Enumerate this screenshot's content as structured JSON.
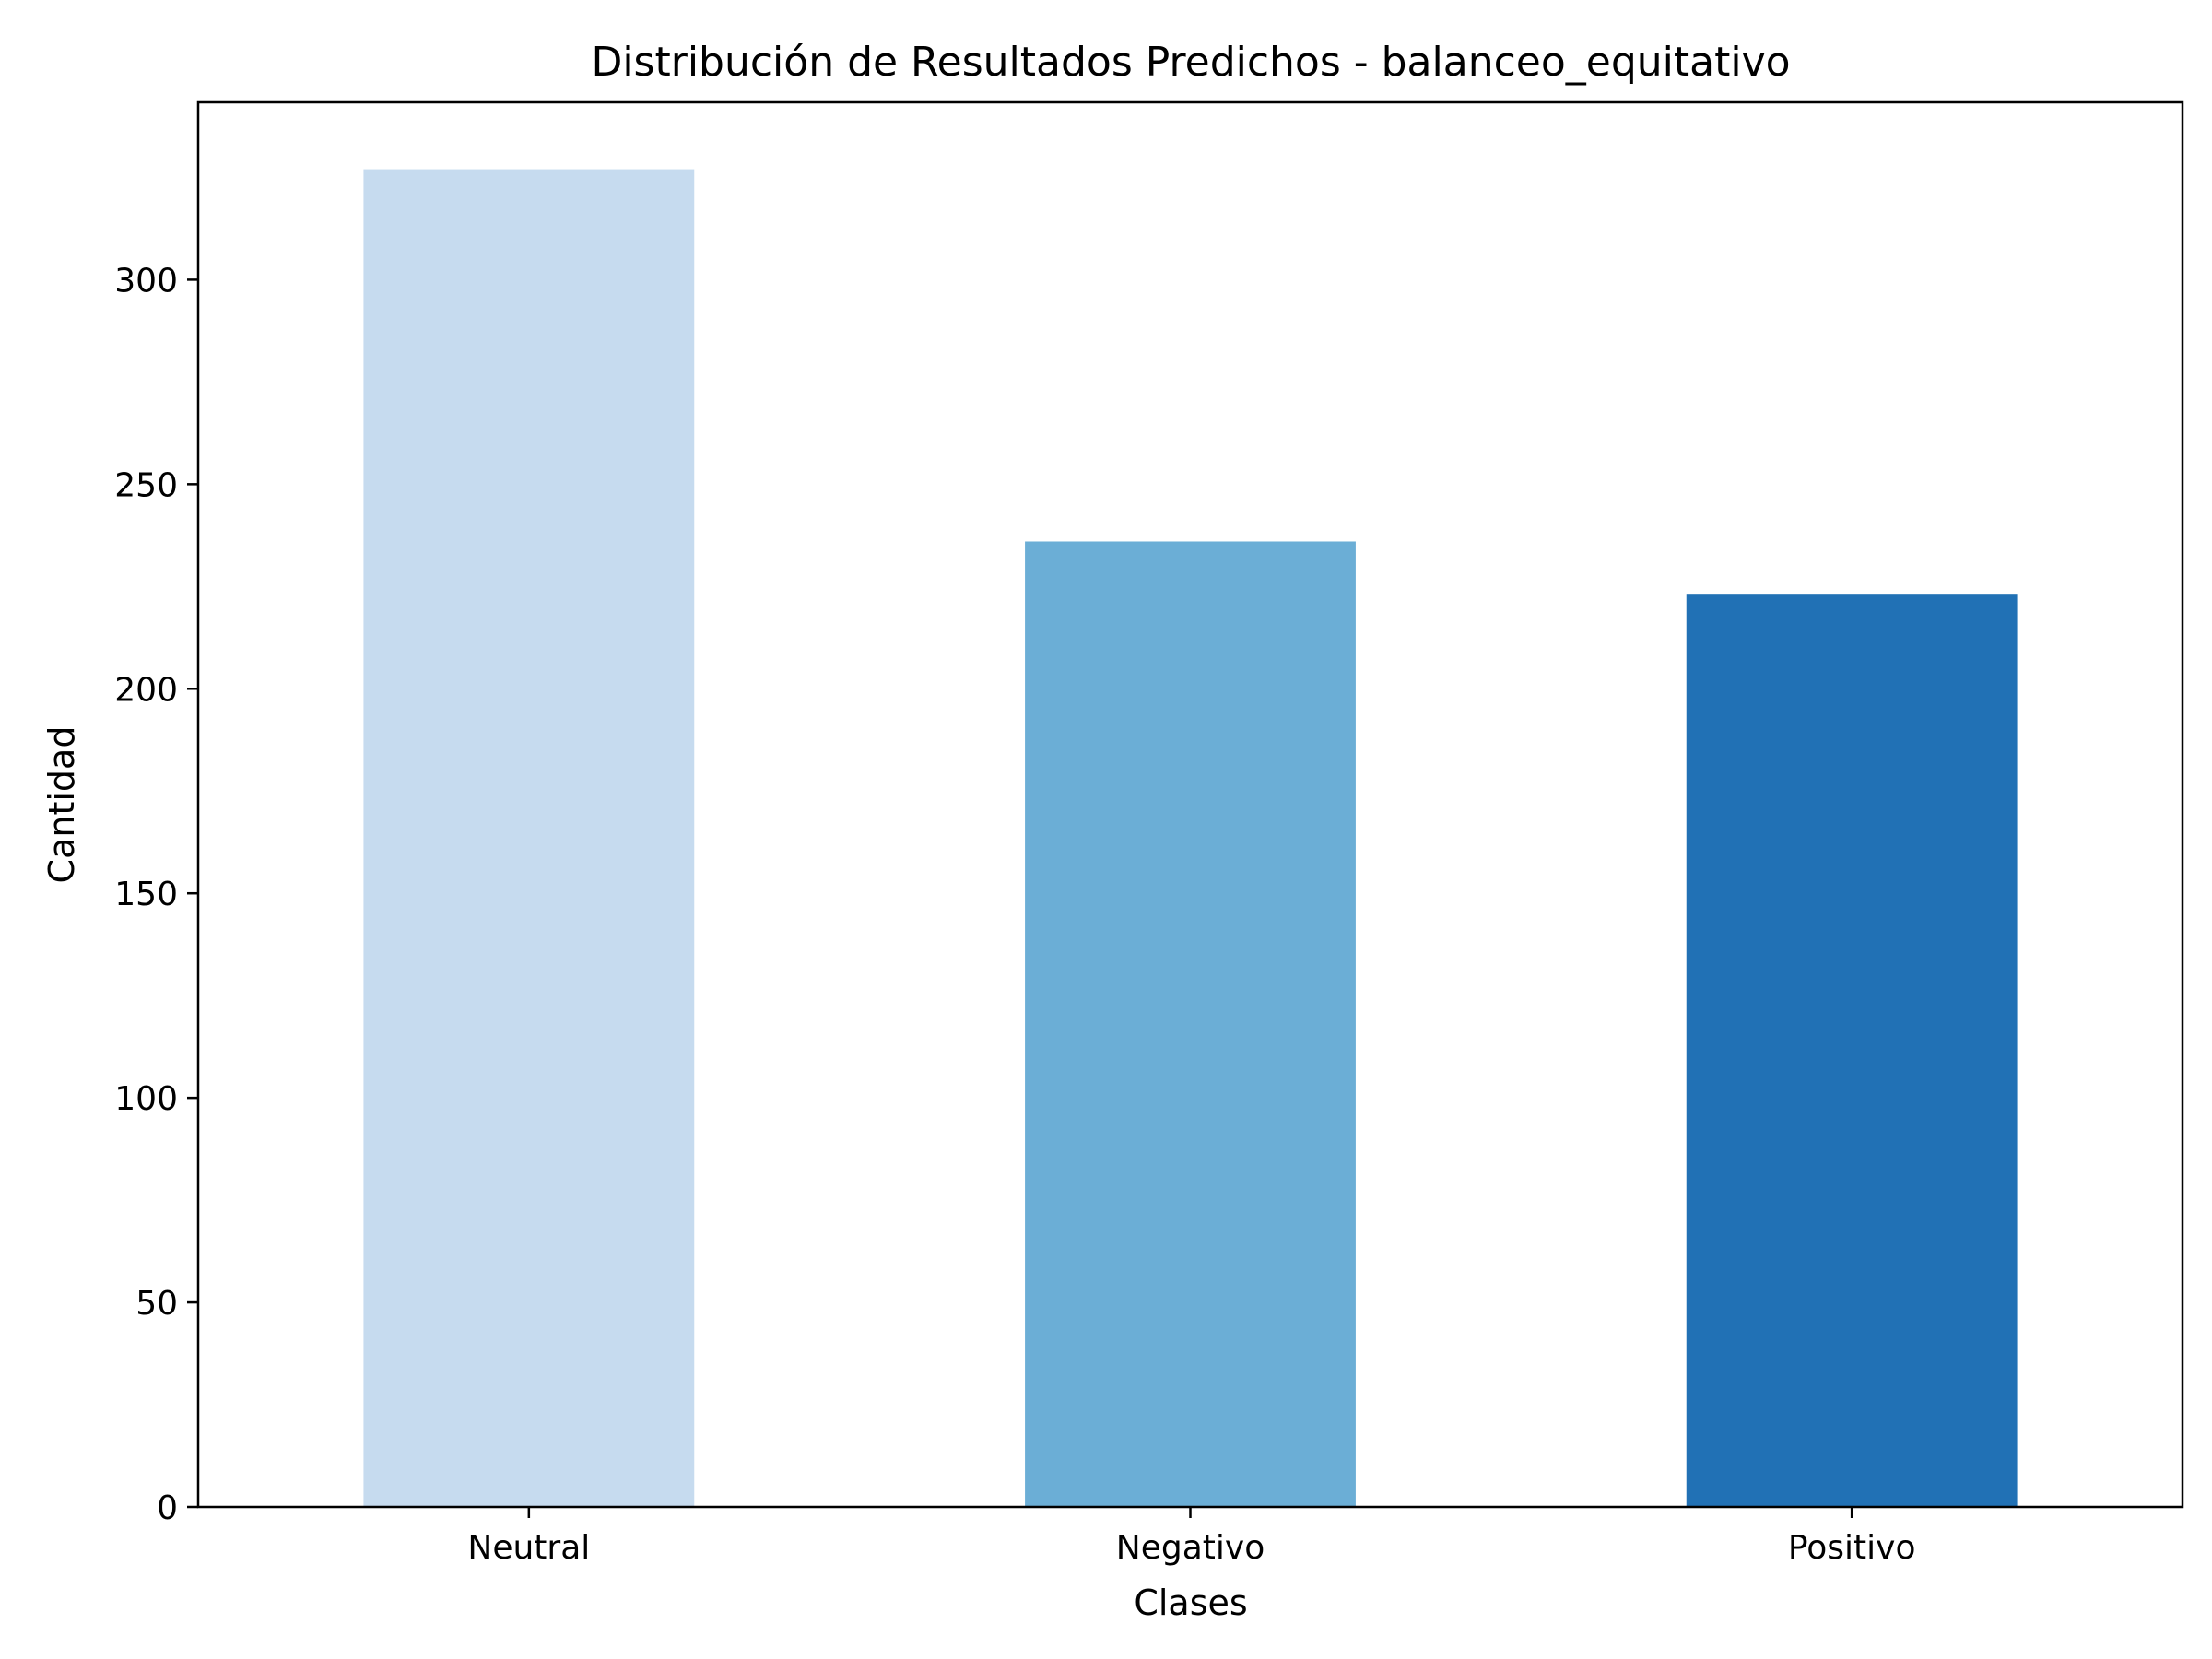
{
  "chart_data": {
    "type": "bar",
    "title": "Distribución de Resultados Predichos - balanceo_equitativo",
    "xlabel": "Clases",
    "ylabel": "Cantidad",
    "categories": [
      "Neutral",
      "Negativo",
      "Positivo"
    ],
    "values": [
      327,
      236,
      223
    ],
    "colors": [
      "#c6dbef",
      "#6baed6",
      "#2171b5"
    ],
    "ylim": [
      0,
      343.35
    ],
    "yticks": [
      0,
      50,
      100,
      150,
      200,
      250,
      300
    ],
    "grid": false,
    "legend": "none"
  }
}
